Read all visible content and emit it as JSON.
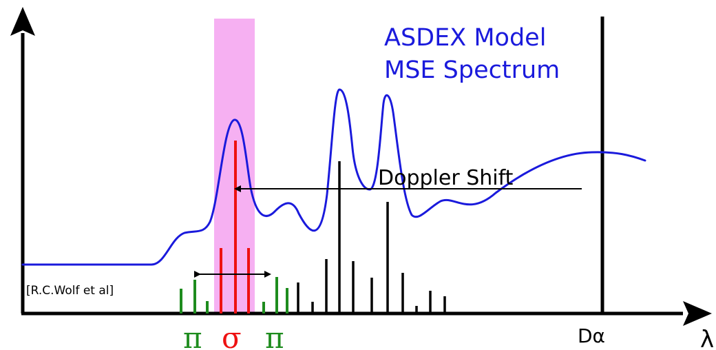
{
  "title": {
    "line1": "ASDEX Model",
    "line2": "MSE Spectrum"
  },
  "annotation": {
    "doppler_shift": "Doppler Shift"
  },
  "citation": "[R.C.Wolf et al]",
  "labels": {
    "pi_left": "π",
    "sigma": "σ",
    "pi_right": "π",
    "d_alpha": "Dα",
    "lambda": "λ"
  },
  "colors": {
    "spectrum": "#1a1adc",
    "pi_lines": "#1e8c1e",
    "sigma_lines": "#ee1111",
    "impurity_lines": "#000000",
    "highlight_band": "#f6b0f2",
    "axes": "#000000"
  }
}
